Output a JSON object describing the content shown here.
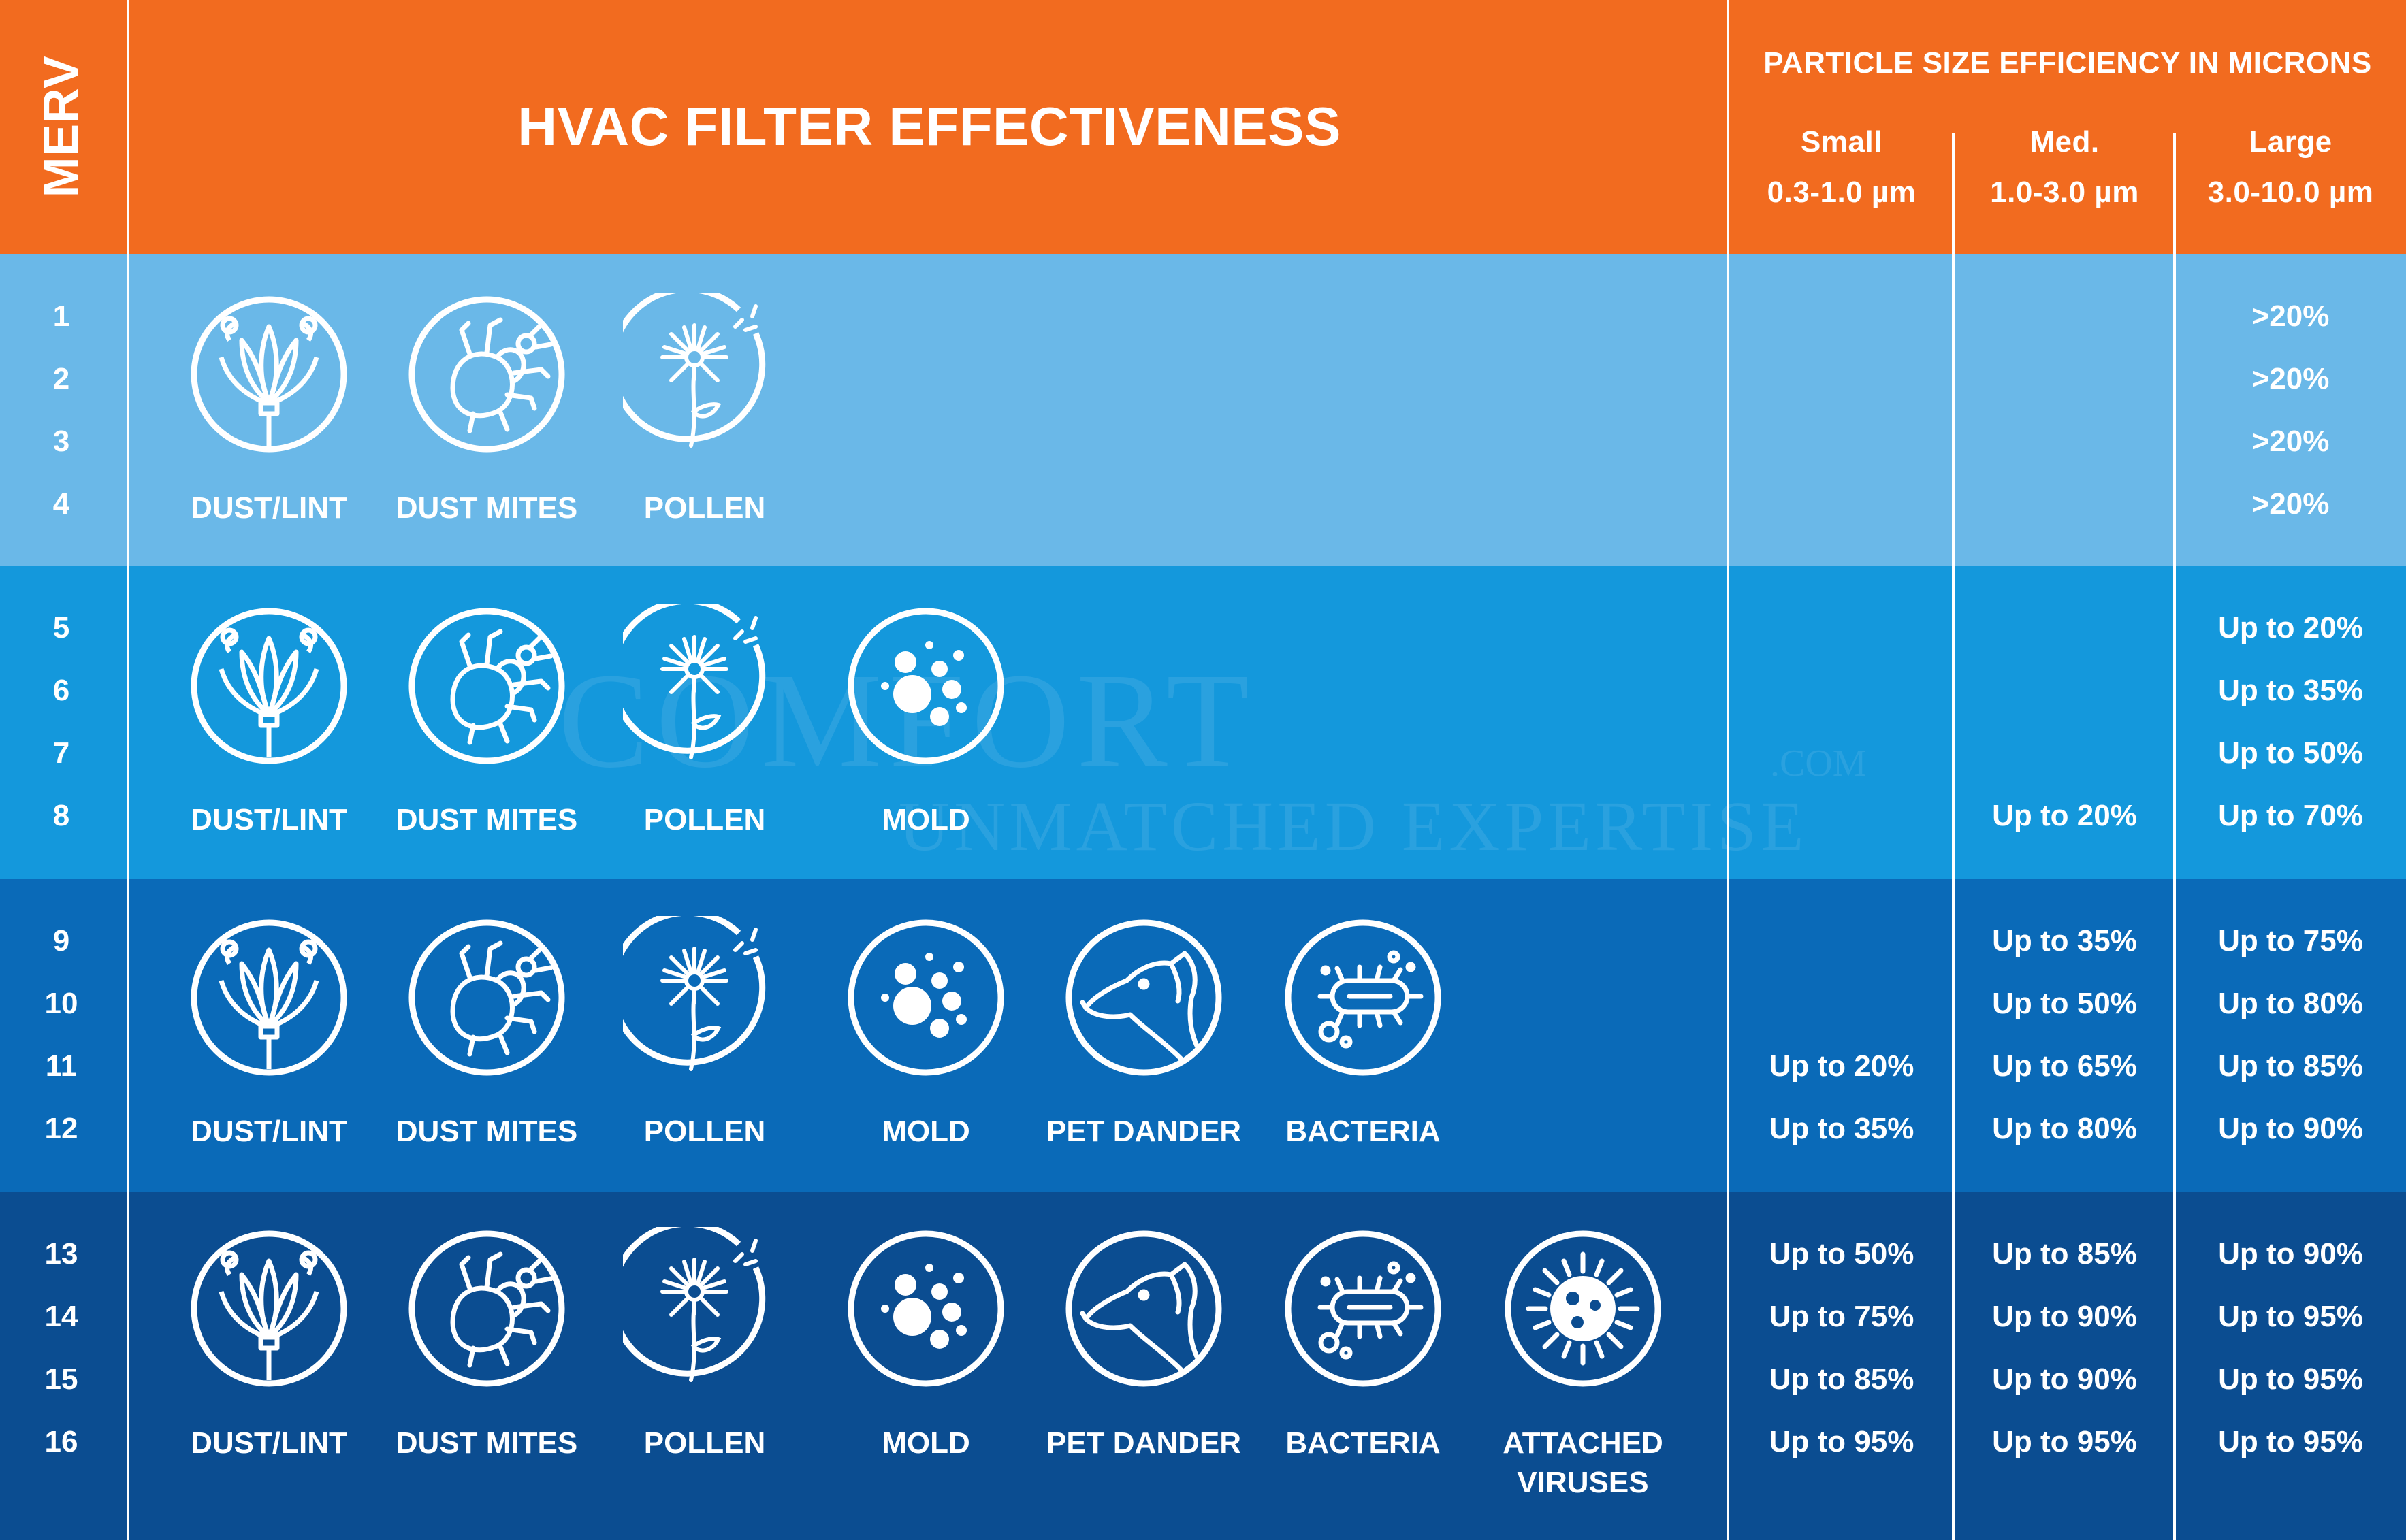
{
  "header": {
    "merv_label": "MERV",
    "title": "HVAC FILTER EFFECTIVENESS",
    "particle_title": "PARTICLE SIZE EFFICIENCY IN MICRONS",
    "columns": [
      {
        "name": "Small",
        "range": "0.3-1.0 µm"
      },
      {
        "name": "Med.",
        "range": "1.0-3.0 µm"
      },
      {
        "name": "Large",
        "range": "3.0-10.0 µm"
      }
    ]
  },
  "colors": {
    "orange": "#f26b1f",
    "band1": "#6ab8e8",
    "band2": "#1498dc",
    "band3": "#0a6ab8",
    "band4": "#0b4d91"
  },
  "icons": {
    "dust_lint": "flower-icon",
    "dust_mites": "mite-icon",
    "pollen": "dandelion-icon",
    "mold": "spores-icon",
    "pet_dander": "dog-icon",
    "bacteria": "bacteria-icon",
    "viruses": "virus-icon"
  },
  "bands": [
    {
      "merv": [
        "1",
        "2",
        "3",
        "4"
      ],
      "labels": [
        "DUST/LINT",
        "DUST MITES",
        "POLLEN"
      ],
      "small": [
        "",
        "",
        "",
        ""
      ],
      "med": [
        "",
        "",
        "",
        ""
      ],
      "large": [
        ">20%",
        ">20%",
        ">20%",
        ">20%"
      ]
    },
    {
      "merv": [
        "5",
        "6",
        "7",
        "8"
      ],
      "labels": [
        "DUST/LINT",
        "DUST MITES",
        "POLLEN",
        "MOLD"
      ],
      "small": [
        "",
        "",
        "",
        ""
      ],
      "med": [
        "",
        "",
        "",
        "Up to 20%"
      ],
      "large": [
        "Up to 20%",
        "Up to 35%",
        "Up to 50%",
        "Up to 70%"
      ]
    },
    {
      "merv": [
        "9",
        "10",
        "11",
        "12"
      ],
      "labels": [
        "DUST/LINT",
        "DUST MITES",
        "POLLEN",
        "MOLD",
        "PET DANDER",
        "BACTERIA"
      ],
      "small": [
        "",
        "",
        "Up to 20%",
        "Up to 35%"
      ],
      "med": [
        "Up to 35%",
        "Up to 50%",
        "Up to 65%",
        "Up to 80%"
      ],
      "large": [
        "Up to 75%",
        "Up to 80%",
        "Up to 85%",
        "Up to 90%"
      ]
    },
    {
      "merv": [
        "13",
        "14",
        "15",
        "16"
      ],
      "labels": [
        "DUST/LINT",
        "DUST MITES",
        "POLLEN",
        "MOLD",
        "PET DANDER",
        "BACTERIA",
        "ATTACHED",
        "VIRUSES"
      ],
      "small": [
        "Up to 50%",
        "Up to 75%",
        "Up to 85%",
        "Up to 95%"
      ],
      "med": [
        "Up to 85%",
        "Up to 90%",
        "Up to 90%",
        "Up to 95%"
      ],
      "large": [
        "Up to 90%",
        "Up to 95%",
        "Up to 95%",
        "Up to 95%"
      ]
    }
  ],
  "watermark": {
    "brand": "COMFORT",
    "domain": ".COM",
    "tagline": "UNMATCHED EXPERTISE"
  }
}
